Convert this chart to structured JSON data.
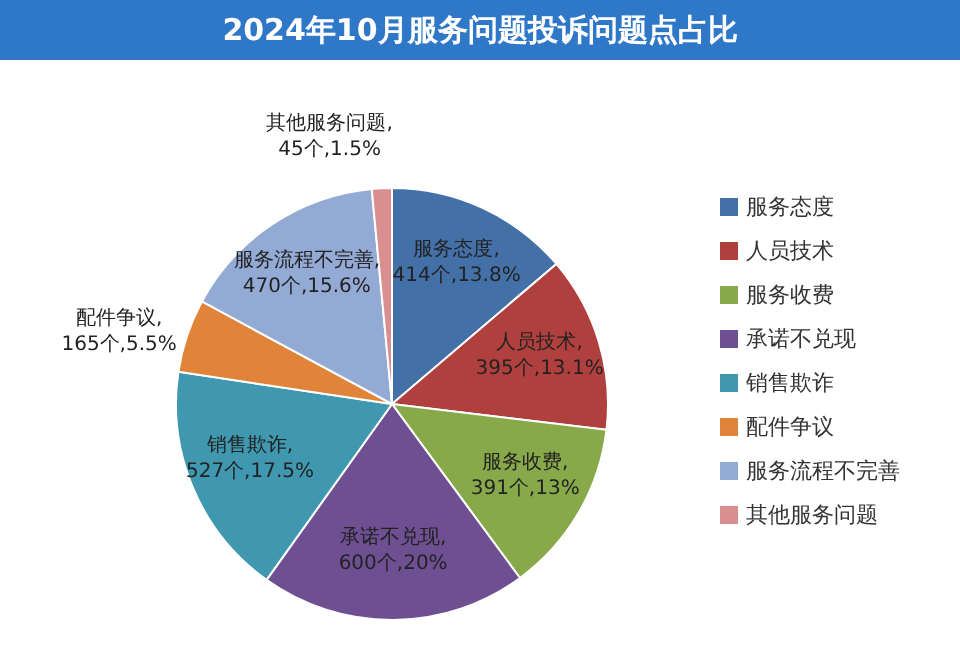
{
  "chart_data": {
    "type": "pie",
    "title": "2024年10月服务问题投诉问题点占比",
    "categories": [
      "服务态度",
      "人员技术",
      "服务收费",
      "承诺不兑现",
      "销售欺诈",
      "配件争议",
      "服务流程不完善",
      "其他服务问题"
    ],
    "values": [
      414,
      395,
      391,
      600,
      527,
      165,
      470,
      45
    ],
    "colors": [
      "#4470a8",
      "#b0403e",
      "#88a94a",
      "#6e5092",
      "#3f97b0",
      "#e0843a",
      "#93aad5",
      "#d98f90"
    ],
    "value_labels": [
      "服务态度,\n414个,13.8%",
      "人员技术,\n395个,13.1%",
      "服务收费,\n391个,13%",
      "承诺不兑现,\n600个,20%",
      "销售欺诈,\n527个,17.5%",
      "配件争议,\n165个,5.5%",
      "服务流程不完善,\n470个,15.6%",
      "其他服务问题,\n45个,1.5%"
    ],
    "legend": "right"
  }
}
